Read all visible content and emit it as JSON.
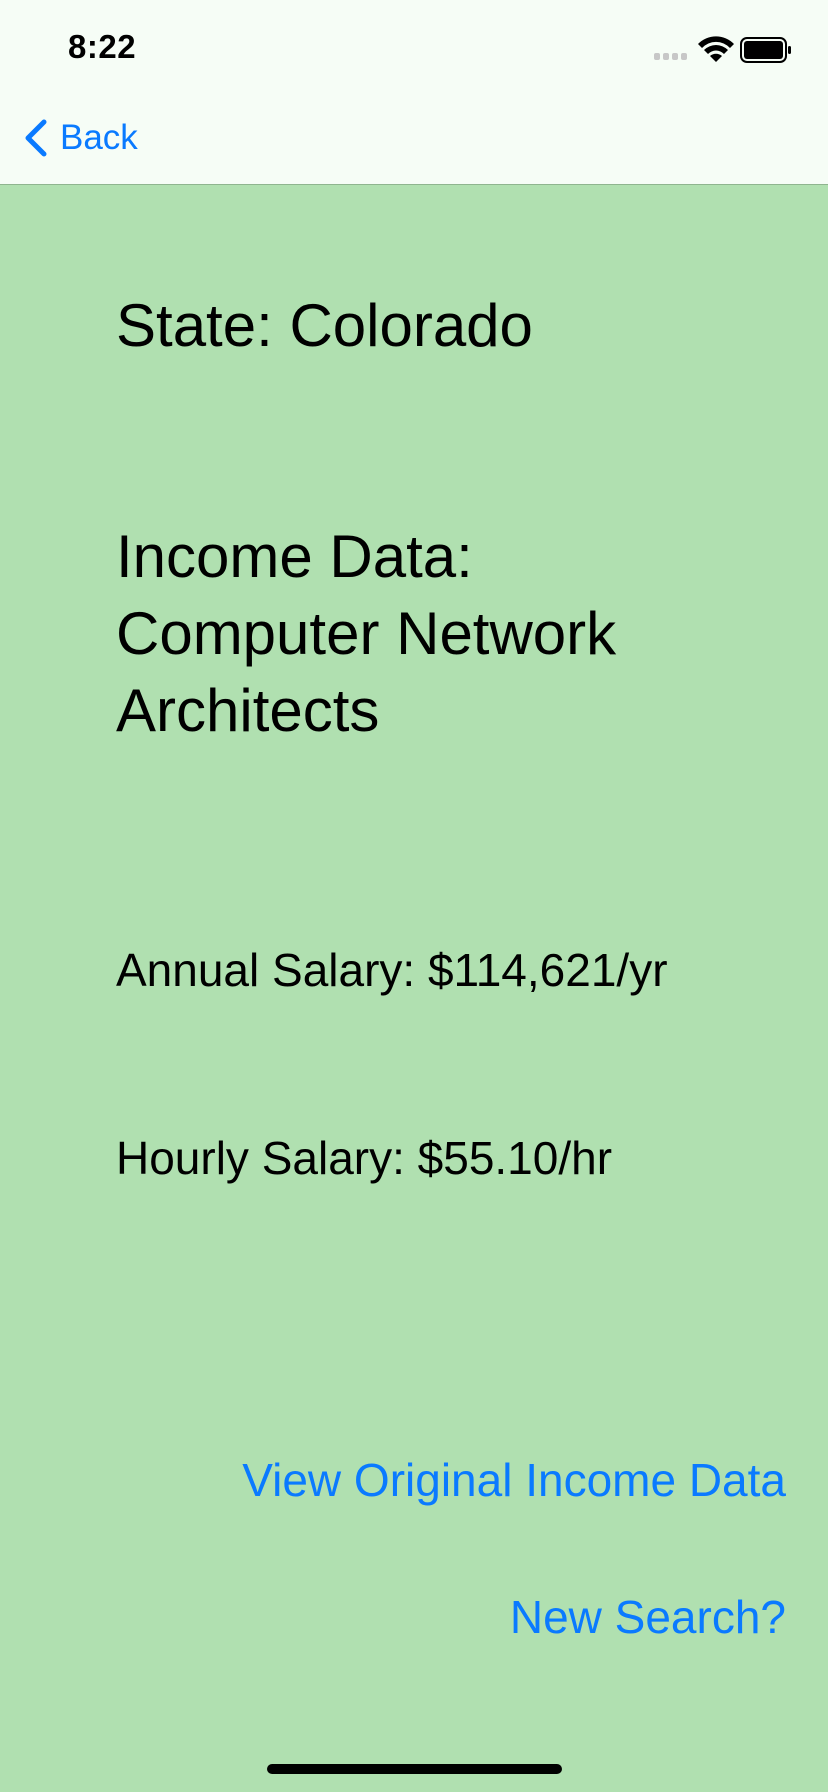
{
  "status_bar": {
    "time": "8:22"
  },
  "nav": {
    "back_label": "Back",
    "accent_color": "#0a7aff"
  },
  "content": {
    "state_text": "State: Colorado",
    "income_text": "Income Data: Computer Network Architects",
    "annual_text": "Annual Salary: $114,621/yr",
    "hourly_text": "Hourly Salary: $55.10/hr"
  },
  "actions": {
    "view_original_label": "View Original Income Data",
    "new_search_label": "New Search?"
  },
  "theme": {
    "background": "#b0e0b0",
    "topbar_background": "#f6fdf6"
  },
  "icons": [
    "chevron-left-icon",
    "signal-icon",
    "wifi-icon",
    "battery-icon"
  ]
}
